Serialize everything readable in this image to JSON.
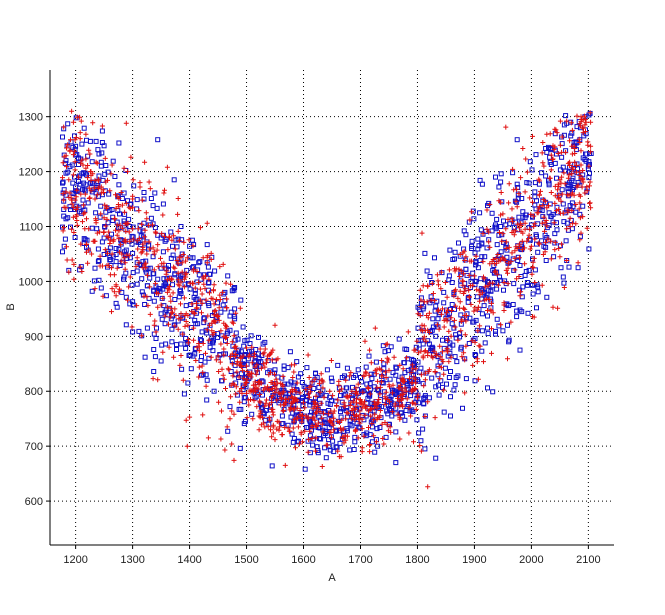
{
  "chart_data": {
    "type": "scatter",
    "xlabel": "A",
    "ylabel": "B",
    "xlim": [
      1155,
      2145
    ],
    "ylim": [
      520,
      1385
    ],
    "xticks": [
      1200,
      1300,
      1400,
      1500,
      1600,
      1700,
      1800,
      1900,
      2000,
      2100
    ],
    "yticks": [
      600,
      700,
      800,
      900,
      1000,
      1100,
      1200,
      1300
    ],
    "grid": true,
    "grid_style": "dotted",
    "legend": "none",
    "series": [
      {
        "marker": "square",
        "color": "#1010c8",
        "points": []
      },
      {
        "marker": "plus",
        "color": "#e01010",
        "points": []
      }
    ],
    "summary": {
      "pattern": "U-shaped cloud",
      "left_arm": "x 1200-1450, y 850-1250",
      "bottom": "x 1500-1800, y 650-850",
      "right_arm": "x 1800-2000, y 850-1200",
      "min_y_near_x": 1650,
      "approx_points_per_series": 1500
    }
  }
}
